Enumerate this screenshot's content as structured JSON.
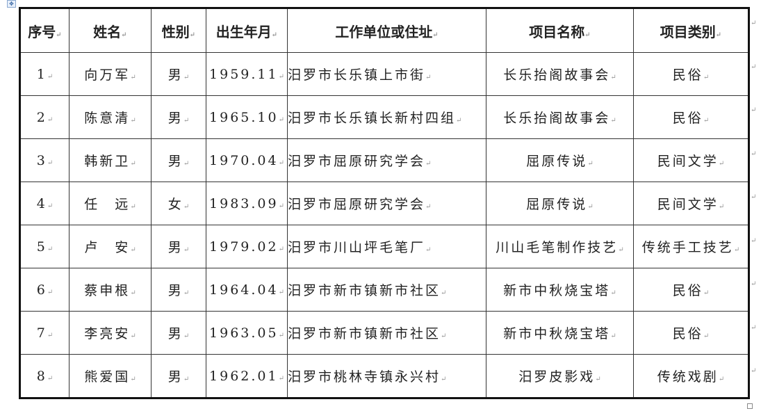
{
  "headers": [
    "序号",
    "姓名",
    "性别",
    "出生年月",
    "工作单位或住址",
    "项目名称",
    "项目类别"
  ],
  "rows": [
    [
      "1",
      "向万军",
      "男",
      "1959.11",
      "汨罗市长乐镇上市街",
      "长乐抬阁故事会",
      "民俗"
    ],
    [
      "2",
      "陈意清",
      "男",
      "1965.10",
      "汨罗市长乐镇长新村四组",
      "长乐抬阁故事会",
      "民俗"
    ],
    [
      "3",
      "韩新卫",
      "男",
      "1970.04",
      "汨罗市屈原研究学会",
      "屈原传说",
      "民间文学"
    ],
    [
      "4",
      "任　远",
      "女",
      "1983.09",
      "汨罗市屈原研究学会",
      "屈原传说",
      "民间文学"
    ],
    [
      "5",
      "卢　安",
      "男",
      "1979.02",
      "汨罗市川山坪毛笔厂",
      "川山毛笔制作技艺",
      "传统手工技艺"
    ],
    [
      "6",
      "蔡申根",
      "男",
      "1964.04",
      "汨罗市新市镇新市社区",
      "新市中秋烧宝塔",
      "民俗"
    ],
    [
      "7",
      "李亮安",
      "男",
      "1963.05",
      "汨罗市新市镇新市社区",
      "新市中秋烧宝塔",
      "民俗"
    ],
    [
      "8",
      "熊爱国",
      "男",
      "1962.01",
      "汨罗市桃林寺镇永兴村",
      "汨罗皮影戏",
      "传统戏剧"
    ]
  ]
}
